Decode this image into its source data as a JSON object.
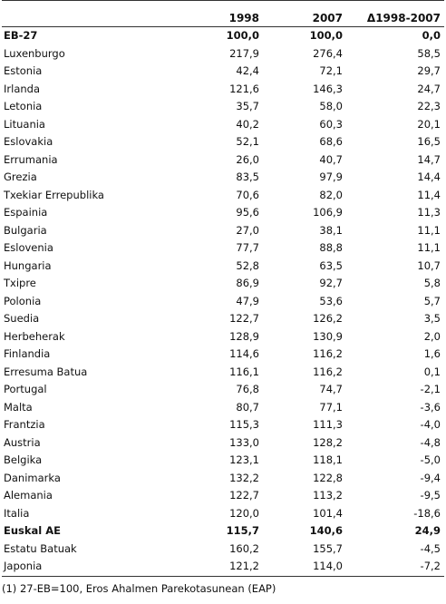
{
  "table": {
    "headers": [
      "",
      "1998",
      "2007",
      "Δ1998-2007"
    ],
    "rows": [
      {
        "name": "EB-27",
        "v1998": "100,0",
        "v2007": "100,0",
        "diff": "0,0",
        "bold": true
      },
      {
        "name": "Luxenburgo",
        "v1998": "217,9",
        "v2007": "276,4",
        "diff": "58,5"
      },
      {
        "name": "Estonia",
        "v1998": "42,4",
        "v2007": "72,1",
        "diff": "29,7"
      },
      {
        "name": "Irlanda",
        "v1998": "121,6",
        "v2007": "146,3",
        "diff": "24,7"
      },
      {
        "name": "Letonia",
        "v1998": "35,7",
        "v2007": "58,0",
        "diff": "22,3"
      },
      {
        "name": "Lituania",
        "v1998": "40,2",
        "v2007": "60,3",
        "diff": "20,1"
      },
      {
        "name": "Eslovakia",
        "v1998": "52,1",
        "v2007": "68,6",
        "diff": "16,5"
      },
      {
        "name": "Errumania",
        "v1998": "26,0",
        "v2007": "40,7",
        "diff": "14,7"
      },
      {
        "name": "Grezia",
        "v1998": "83,5",
        "v2007": "97,9",
        "diff": "14,4"
      },
      {
        "name": "Txekiar Errepublika",
        "v1998": "70,6",
        "v2007": "82,0",
        "diff": "11,4"
      },
      {
        "name": "Espainia",
        "v1998": "95,6",
        "v2007": "106,9",
        "diff": "11,3"
      },
      {
        "name": "Bulgaria",
        "v1998": "27,0",
        "v2007": "38,1",
        "diff": "11,1"
      },
      {
        "name": "Eslovenia",
        "v1998": "77,7",
        "v2007": "88,8",
        "diff": "11,1"
      },
      {
        "name": "Hungaria",
        "v1998": "52,8",
        "v2007": "63,5",
        "diff": "10,7"
      },
      {
        "name": "Txipre",
        "v1998": "86,9",
        "v2007": "92,7",
        "diff": "5,8"
      },
      {
        "name": "Polonia",
        "v1998": "47,9",
        "v2007": "53,6",
        "diff": "5,7"
      },
      {
        "name": "Suedia",
        "v1998": "122,7",
        "v2007": "126,2",
        "diff": "3,5"
      },
      {
        "name": "Herbeherak",
        "v1998": "128,9",
        "v2007": "130,9",
        "diff": "2,0"
      },
      {
        "name": "Finlandia",
        "v1998": "114,6",
        "v2007": "116,2",
        "diff": "1,6"
      },
      {
        "name": "Erresuma Batua",
        "v1998": "116,1",
        "v2007": "116,2",
        "diff": "0,1"
      },
      {
        "name": "Portugal",
        "v1998": "76,8",
        "v2007": "74,7",
        "diff": "-2,1"
      },
      {
        "name": "Malta",
        "v1998": "80,7",
        "v2007": "77,1",
        "diff": "-3,6"
      },
      {
        "name": "Frantzia",
        "v1998": "115,3",
        "v2007": "111,3",
        "diff": "-4,0"
      },
      {
        "name": "Austria",
        "v1998": "133,0",
        "v2007": "128,2",
        "diff": "-4,8"
      },
      {
        "name": "Belgika",
        "v1998": "123,1",
        "v2007": "118,1",
        "diff": "-5,0"
      },
      {
        "name": "Danimarka",
        "v1998": "132,2",
        "v2007": "122,8",
        "diff": "-9,4"
      },
      {
        "name": "Alemania",
        "v1998": "122,7",
        "v2007": "113,2",
        "diff": "-9,5"
      },
      {
        "name": "Italia",
        "v1998": "120,0",
        "v2007": "101,4",
        "diff": "-18,6"
      },
      {
        "name": "Euskal AE",
        "v1998": "115,7",
        "v2007": "140,6",
        "diff": "24,9",
        "bold": true
      },
      {
        "name": "Estatu Batuak",
        "v1998": "160,2",
        "v2007": "155,7",
        "diff": "-4,5"
      },
      {
        "name": "Japonia",
        "v1998": "121,2",
        "v2007": "114,0",
        "diff": "-7,2"
      }
    ]
  },
  "footnote": "(1) 27-EB=100, Eros Ahalmen Parekotasunean (EAP)"
}
